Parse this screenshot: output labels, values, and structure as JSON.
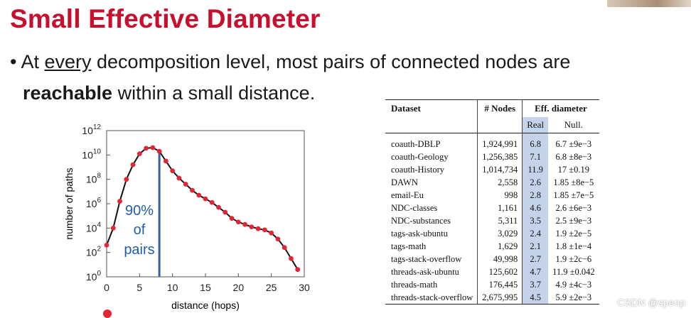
{
  "slide": {
    "title": "Small Effective Diameter",
    "bullet_marker": "•",
    "bullet_line1_pre": "At ",
    "bullet_line1_underline": "every",
    "bullet_line1_post": " decomposition level, most pairs of connected nodes are",
    "bullet_line2_bold": "reachable",
    "bullet_line2_post": " within a small distance."
  },
  "chart_data": {
    "type": "line",
    "xlabel": "distance (hops)",
    "ylabel": "number of paths",
    "xlim": [
      0,
      30
    ],
    "ylim_log10": [
      0,
      12
    ],
    "x_ticks": [
      "0",
      "5",
      "10",
      "15",
      "20",
      "25",
      "30"
    ],
    "y_ticks_exp": [
      "0",
      "2",
      "4",
      "6",
      "8",
      "10",
      "12"
    ],
    "y_tick_base": "10",
    "series": [
      {
        "x": [
          0,
          1,
          2,
          3,
          4,
          5,
          6,
          7,
          8,
          9,
          10,
          11,
          12,
          13,
          14,
          15,
          16,
          17,
          18,
          19,
          20,
          21,
          22,
          23,
          24,
          25,
          26,
          27,
          28,
          29
        ],
        "log10_y": [
          2.6,
          4.0,
          6.2,
          8.0,
          9.2,
          10.1,
          10.55,
          10.6,
          10.3,
          9.5,
          8.7,
          8.1,
          7.6,
          7.1,
          6.7,
          6.4,
          6.1,
          5.7,
          5.3,
          4.8,
          4.5,
          4.3,
          4.1,
          3.95,
          3.85,
          3.6,
          3.1,
          2.4,
          1.5,
          0.6
        ]
      }
    ],
    "vertical_marker_x": 8,
    "annotation_line1": "90%",
    "annotation_line2": "of",
    "annotation_line3": "pairs",
    "colors": {
      "line": "#111111",
      "marker": "#e32636",
      "vline": "#3a5ea8",
      "annotation": "#1f5fa8"
    }
  },
  "table": {
    "headers": {
      "dataset": "Dataset",
      "nodes": "# Nodes",
      "eff": "Eff. diameter",
      "real": "Real",
      "null": "Null."
    },
    "rows": [
      {
        "name": "coauth-DBLP",
        "nodes": "1,924,991",
        "real": "6.8",
        "null": "6.7 ±9e−3"
      },
      {
        "name": "coauth-Geology",
        "nodes": "1,256,385",
        "real": "7.1",
        "null": "6.8 ±8e−3"
      },
      {
        "name": "coauth-History",
        "nodes": "1,014,734",
        "real": "11.9",
        "null": "17 ±0.19"
      },
      {
        "name": "DAWN",
        "nodes": "2,558",
        "real": "2.6",
        "null": "1.85 ±8e−5"
      },
      {
        "name": "email-Eu",
        "nodes": "998",
        "real": "2.8",
        "null": "1.85 ±7e−5"
      },
      {
        "name": "NDC-classes",
        "nodes": "1,161",
        "real": "4.6",
        "null": "2.6 ±6e−3"
      },
      {
        "name": "NDC-substances",
        "nodes": "5,311",
        "real": "3.5",
        "null": "2.5 ±9e−3"
      },
      {
        "name": "tags-ask-ubuntu",
        "nodes": "3,029",
        "real": "2.4",
        "null": "1.9 ±2e−5"
      },
      {
        "name": "tags-math",
        "nodes": "1,629",
        "real": "2.1",
        "null": "1.8 ±1e−4"
      },
      {
        "name": "tags-stack-overflow",
        "nodes": "49,998",
        "real": "2.7",
        "null": "1.9 ±2c−6"
      },
      {
        "name": "threads-ask-ubuntu",
        "nodes": "125,602",
        "real": "4.7",
        "null": "11.9 ±0.042"
      },
      {
        "name": "threads-math",
        "nodes": "176,445",
        "real": "3.7",
        "null": "4.9 ±4c−3"
      },
      {
        "name": "threads-stack-overflow",
        "nodes": "2,675,995",
        "real": "4.5",
        "null": "5.9 ±2e−3"
      }
    ]
  },
  "watermark": "CSDN @speop"
}
